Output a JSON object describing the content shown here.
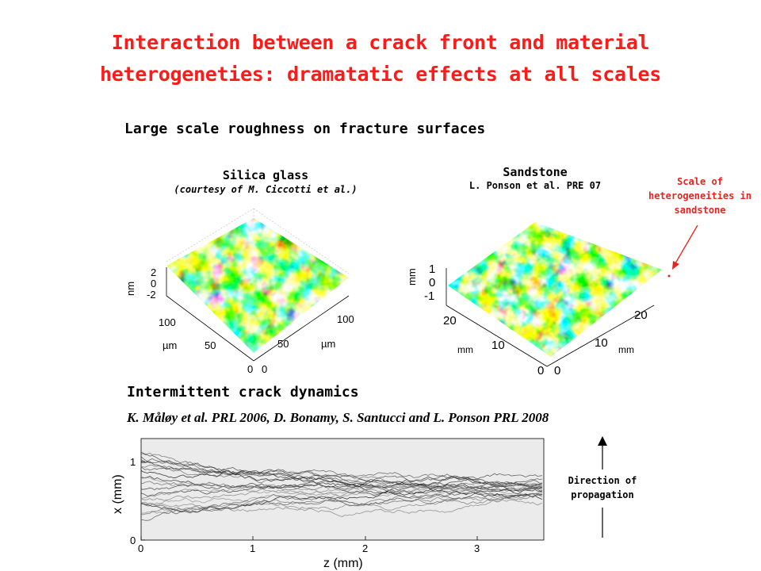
{
  "slide": {
    "title_line1": "Interaction between a crack front and material",
    "title_line2": "heterogeneties: dramatatic effects at all scales",
    "section1_heading": "Large scale roughness on fracture surfaces",
    "section2_heading": "Intermittent crack dynamics",
    "reference": "K. Måløy et al. PRL 2006, D. Bonamy, S. Santucci and L. Ponson PRL 2008"
  },
  "panel_silica": {
    "title": "Silica glass",
    "credit": "(courtesy of M. Ciccotti et al.)",
    "z_label": "nm",
    "z_ticks": [
      "2",
      "0",
      "-2"
    ],
    "left_axis_label": "µm",
    "left_ticks": [
      "100",
      "50",
      "0"
    ],
    "right_axis_label": "µm",
    "right_ticks": [
      "100",
      "50",
      "0"
    ]
  },
  "panel_sandstone": {
    "title": "Sandstone",
    "credit": "L. Ponson et al. PRE 07",
    "z_label": "mm",
    "z_ticks": [
      "1",
      "0",
      "-1"
    ],
    "left_axis_label": "mm",
    "left_ticks": [
      "20",
      "10",
      "0"
    ],
    "right_axis_label": "mm",
    "right_ticks": [
      "20",
      "10",
      "0"
    ]
  },
  "annotation": {
    "text": "Scale of heterogeneities in sandstone",
    "line1": "Scale of",
    "line2": "heterogeneities in",
    "line3": "sandstone",
    "color": "#e8231c"
  },
  "propagation": {
    "line1": "Direction of",
    "line2": "propagation"
  },
  "crack_plot": {
    "ylabel": "x (mm)",
    "xlabel": "z (mm)",
    "x_ticks": [
      "0",
      "1",
      "2",
      "3"
    ],
    "y_ticks": [
      "1",
      "0"
    ],
    "background": "#ebebeb"
  },
  "colors": {
    "title": "#ff1a1a",
    "annotation": "#e8231c"
  }
}
